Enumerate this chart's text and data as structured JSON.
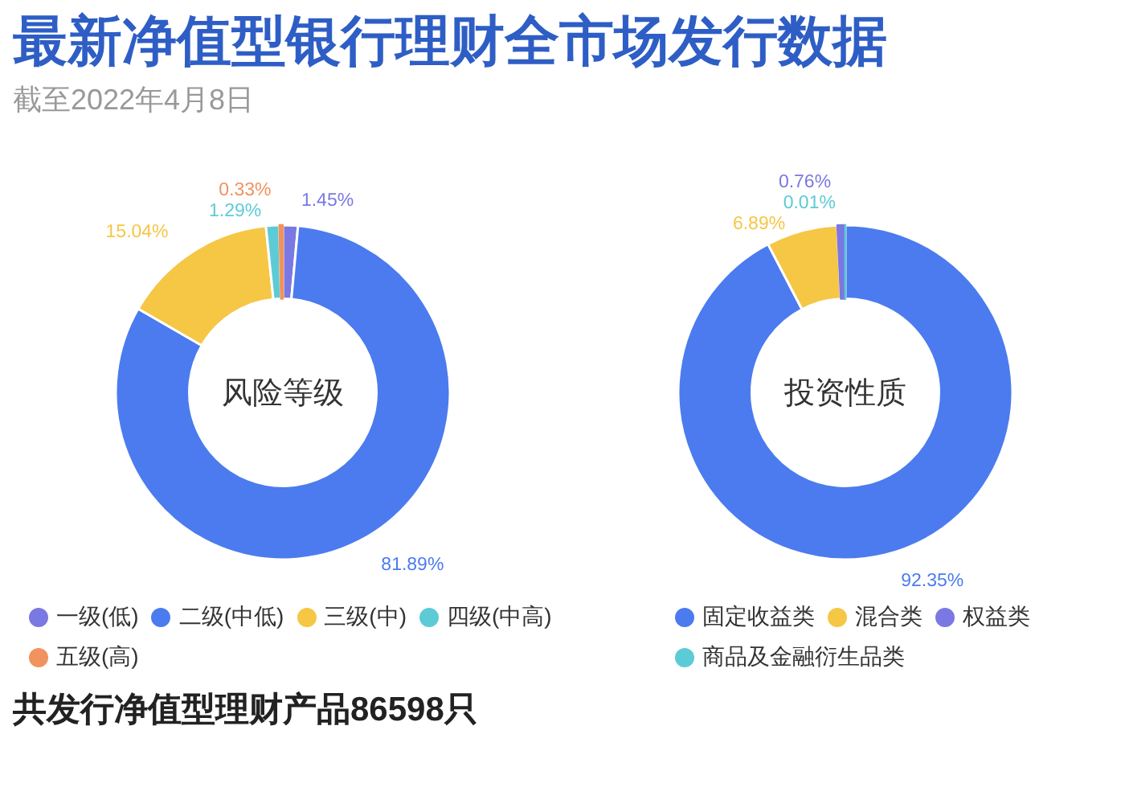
{
  "chart_data": [
    {
      "type": "donut",
      "title": "最新净值型银行理财全市场发行数据",
      "subtitle": "截至2022年4月8日",
      "annotations": [
        "风险等级",
        "共发行净值型理财产品86598只"
      ],
      "categories": [
        "一级(低)",
        "二级(中低)",
        "三级(中)",
        "四级(中高)",
        "五级(高)"
      ],
      "values": [
        1.45,
        81.89,
        15.04,
        1.29,
        0.33
      ],
      "colors": [
        "#7a78e2",
        "#4b7bee",
        "#f6c645",
        "#5ccbd6",
        "#f0935e"
      ],
      "value_labels": [
        "1.45%",
        "81.89%",
        "15.04%",
        "1.29%",
        "0.33%"
      ],
      "legend": "bottom"
    },
    {
      "type": "donut",
      "annotations": [
        "投资性质"
      ],
      "categories": [
        "固定收益类",
        "混合类",
        "权益类",
        "商品及金融衍生品类"
      ],
      "values": [
        92.35,
        6.89,
        0.76,
        0.01
      ],
      "colors": [
        "#4b7bee",
        "#f6c645",
        "#7a78e2",
        "#5ccbd6"
      ],
      "value_labels": [
        "92.35%",
        "6.89%",
        "0.76%",
        "0.01%"
      ],
      "legend": "bottom"
    }
  ]
}
